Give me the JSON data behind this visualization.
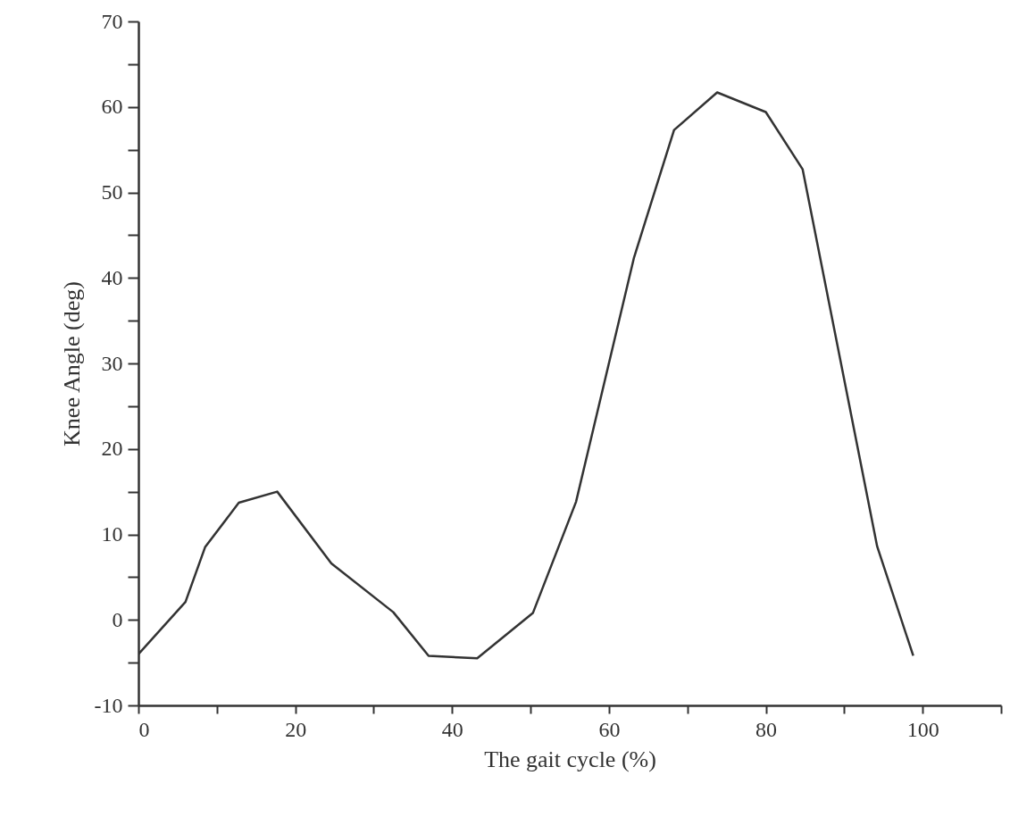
{
  "chart_data": {
    "type": "line",
    "xlabel": "The gait cycle (%)",
    "ylabel": "Knee Angle (deg)",
    "x": [
      0,
      6.0,
      8.5,
      12.8,
      17.7,
      24.6,
      32.5,
      37.0,
      43.2,
      50.3,
      55.8,
      63.2,
      68.3,
      73.8,
      80.0,
      84.7,
      94.2,
      98.8
    ],
    "series": [
      {
        "color": "#333333",
        "values": [
          -4.0,
          2.1,
          8.5,
          13.7,
          15.0,
          6.6,
          0.9,
          -4.2,
          -4.5,
          0.8,
          13.8,
          42.4,
          57.3,
          61.7,
          59.4,
          52.7,
          8.6,
          -4.2
        ]
      }
    ],
    "xlim": [
      0,
      110
    ],
    "xticks": [
      0,
      {
        "value": 10,
        "label": null
      },
      20,
      {
        "value": 30,
        "label": null
      },
      40,
      {
        "value": 50,
        "label": null
      },
      60,
      {
        "value": 70,
        "label": null
      },
      80,
      {
        "value": 90,
        "label": null
      },
      100,
      {
        "value": 110,
        "label": null
      }
    ],
    "ylim": [
      -10,
      70
    ],
    "yticks": [
      -10,
      {
        "value": -5,
        "label": null
      },
      0,
      {
        "value": 5,
        "label": null
      },
      10,
      {
        "value": 15,
        "label": null
      },
      20,
      {
        "value": 25,
        "label": null
      },
      30,
      {
        "value": 35,
        "label": null
      },
      40,
      {
        "value": 45,
        "label": null
      },
      50,
      {
        "value": 55,
        "label": null
      },
      60,
      {
        "value": 65,
        "label": null
      },
      70
    ],
    "grid": false,
    "legend": false,
    "marker": "none",
    "line_style": "solid"
  }
}
